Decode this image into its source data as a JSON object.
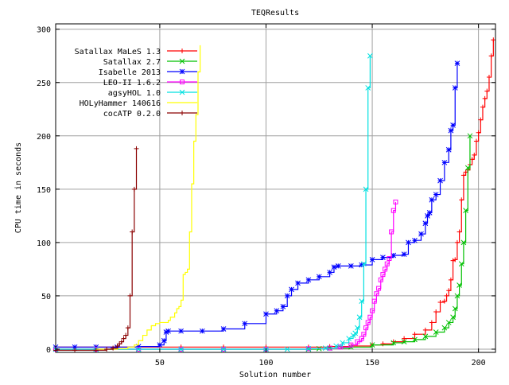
{
  "chart_data": {
    "type": "line",
    "title": "TEQResults",
    "xlabel": "Solution number",
    "ylabel": "CPU time in seconds",
    "xlim": [
      1,
      208
    ],
    "ylim": [
      -3,
      305
    ],
    "xticks": [
      50,
      100,
      150,
      200
    ],
    "yticks": [
      0,
      50,
      100,
      150,
      200,
      250,
      300
    ],
    "grid": true,
    "legend_position": "top-left",
    "series": [
      {
        "name": "Satallax MaLeS 1.3",
        "color": "#ff0000",
        "marker": "plus",
        "points": [
          [
            1,
            2
          ],
          [
            20,
            2
          ],
          [
            40,
            2
          ],
          [
            60,
            2
          ],
          [
            80,
            2
          ],
          [
            100,
            2
          ],
          [
            120,
            2
          ],
          [
            130,
            2.5
          ],
          [
            140,
            3
          ],
          [
            150,
            4
          ],
          [
            155,
            5
          ],
          [
            160,
            7
          ],
          [
            165,
            10
          ],
          [
            170,
            14
          ],
          [
            175,
            18
          ],
          [
            178,
            25
          ],
          [
            180,
            35
          ],
          [
            182,
            44
          ],
          [
            184,
            45
          ],
          [
            185,
            50
          ],
          [
            186,
            55
          ],
          [
            187,
            65
          ],
          [
            188,
            83
          ],
          [
            189,
            84
          ],
          [
            190,
            100
          ],
          [
            191,
            110
          ],
          [
            192,
            140
          ],
          [
            193,
            163
          ],
          [
            194,
            166
          ],
          [
            195,
            168
          ],
          [
            196,
            173
          ],
          [
            197,
            178
          ],
          [
            198,
            182
          ],
          [
            199,
            195
          ],
          [
            200,
            203
          ],
          [
            201,
            215
          ],
          [
            202,
            227
          ],
          [
            203,
            235
          ],
          [
            204,
            242
          ],
          [
            205,
            255
          ],
          [
            206,
            275
          ],
          [
            207,
            290
          ]
        ]
      },
      {
        "name": "Satallax 2.7",
        "color": "#00c000",
        "marker": "cross",
        "points": [
          [
            1,
            0
          ],
          [
            20,
            0
          ],
          [
            40,
            0
          ],
          [
            60,
            0
          ],
          [
            80,
            0
          ],
          [
            100,
            0
          ],
          [
            120,
            0
          ],
          [
            125,
            0.5
          ],
          [
            130,
            1
          ],
          [
            140,
            2
          ],
          [
            150,
            4
          ],
          [
            160,
            6
          ],
          [
            165,
            7
          ],
          [
            170,
            9
          ],
          [
            175,
            12
          ],
          [
            180,
            16
          ],
          [
            184,
            20
          ],
          [
            186,
            25
          ],
          [
            188,
            30
          ],
          [
            189,
            38
          ],
          [
            190,
            50
          ],
          [
            191,
            60
          ],
          [
            192,
            80
          ],
          [
            193,
            100
          ],
          [
            194,
            130
          ],
          [
            195,
            170
          ],
          [
            196,
            200
          ]
        ]
      },
      {
        "name": "Isabelle 2013",
        "color": "#0000ff",
        "marker": "star",
        "points": [
          [
            1,
            2
          ],
          [
            10,
            2
          ],
          [
            20,
            2
          ],
          [
            30,
            2
          ],
          [
            40,
            2.5
          ],
          [
            50,
            4
          ],
          [
            52,
            8
          ],
          [
            53,
            16
          ],
          [
            54,
            17
          ],
          [
            60,
            17
          ],
          [
            70,
            17
          ],
          [
            80,
            19
          ],
          [
            90,
            24
          ],
          [
            100,
            33
          ],
          [
            105,
            36
          ],
          [
            108,
            40
          ],
          [
            110,
            50
          ],
          [
            112,
            56
          ],
          [
            115,
            62
          ],
          [
            120,
            65
          ],
          [
            125,
            68
          ],
          [
            130,
            72
          ],
          [
            132,
            77
          ],
          [
            134,
            78
          ],
          [
            140,
            78
          ],
          [
            145,
            79
          ],
          [
            150,
            84
          ],
          [
            155,
            86
          ],
          [
            160,
            88
          ],
          [
            165,
            89
          ],
          [
            167,
            100
          ],
          [
            170,
            102
          ],
          [
            173,
            108
          ],
          [
            175,
            118
          ],
          [
            176,
            125
          ],
          [
            177,
            128
          ],
          [
            178,
            140
          ],
          [
            180,
            145
          ],
          [
            182,
            158
          ],
          [
            184,
            175
          ],
          [
            186,
            187
          ],
          [
            187,
            205
          ],
          [
            188,
            210
          ],
          [
            189,
            245
          ],
          [
            190,
            268
          ]
        ]
      },
      {
        "name": "LEO-II 1.6.2",
        "color": "#ff00ff",
        "marker": "square",
        "points": [
          [
            1,
            0
          ],
          [
            20,
            0
          ],
          [
            40,
            0
          ],
          [
            60,
            0
          ],
          [
            80,
            0
          ],
          [
            100,
            0
          ],
          [
            120,
            0.5
          ],
          [
            130,
            1
          ],
          [
            135,
            2
          ],
          [
            140,
            4
          ],
          [
            143,
            7
          ],
          [
            145,
            10
          ],
          [
            146,
            14
          ],
          [
            147,
            20
          ],
          [
            148,
            25
          ],
          [
            149,
            30
          ],
          [
            150,
            36
          ],
          [
            151,
            45
          ],
          [
            152,
            52
          ],
          [
            153,
            57
          ],
          [
            154,
            65
          ],
          [
            155,
            70
          ],
          [
            156,
            75
          ],
          [
            157,
            80
          ],
          [
            158,
            85
          ],
          [
            159,
            110
          ],
          [
            160,
            130
          ],
          [
            161,
            138
          ]
        ]
      },
      {
        "name": "agsyHOL 1.0",
        "color": "#00e0e0",
        "marker": "cross",
        "points": [
          [
            1,
            0
          ],
          [
            20,
            0
          ],
          [
            40,
            0
          ],
          [
            60,
            0
          ],
          [
            80,
            0
          ],
          [
            100,
            0
          ],
          [
            110,
            0
          ],
          [
            120,
            0.5
          ],
          [
            128,
            1
          ],
          [
            133,
            3
          ],
          [
            136,
            6
          ],
          [
            139,
            10
          ],
          [
            141,
            13
          ],
          [
            142,
            15
          ],
          [
            143,
            20
          ],
          [
            144,
            30
          ],
          [
            145,
            45
          ],
          [
            146,
            80
          ],
          [
            147,
            150
          ],
          [
            148,
            245
          ],
          [
            149,
            275
          ]
        ]
      },
      {
        "name": "HOLyHammer 140616",
        "color": "#ffff00",
        "marker": "none",
        "points": [
          [
            20,
            0
          ],
          [
            25,
            0
          ],
          [
            30,
            0.5
          ],
          [
            35,
            2
          ],
          [
            38,
            4
          ],
          [
            40,
            8
          ],
          [
            42,
            13
          ],
          [
            44,
            18
          ],
          [
            46,
            22
          ],
          [
            48,
            24
          ],
          [
            50,
            25
          ],
          [
            54,
            27
          ],
          [
            55,
            30
          ],
          [
            57,
            34
          ],
          [
            58,
            38
          ],
          [
            59,
            40
          ],
          [
            60,
            46
          ],
          [
            61,
            70
          ],
          [
            62,
            72
          ],
          [
            63,
            75
          ],
          [
            64,
            110
          ],
          [
            65,
            155
          ],
          [
            66,
            195
          ],
          [
            67,
            220
          ],
          [
            68,
            260
          ],
          [
            69,
            285
          ]
        ]
      },
      {
        "name": "cocATP 0.2.0",
        "color": "#8b0000",
        "marker": "plus",
        "points": [
          [
            1,
            -1
          ],
          [
            10,
            -1
          ],
          [
            20,
            -1
          ],
          [
            25,
            0
          ],
          [
            28,
            1
          ],
          [
            30,
            3
          ],
          [
            31,
            5
          ],
          [
            32,
            7
          ],
          [
            33,
            10
          ],
          [
            34,
            13
          ],
          [
            35,
            20
          ],
          [
            36,
            50
          ],
          [
            37,
            110
          ],
          [
            38,
            150
          ],
          [
            39,
            188
          ]
        ]
      }
    ]
  }
}
